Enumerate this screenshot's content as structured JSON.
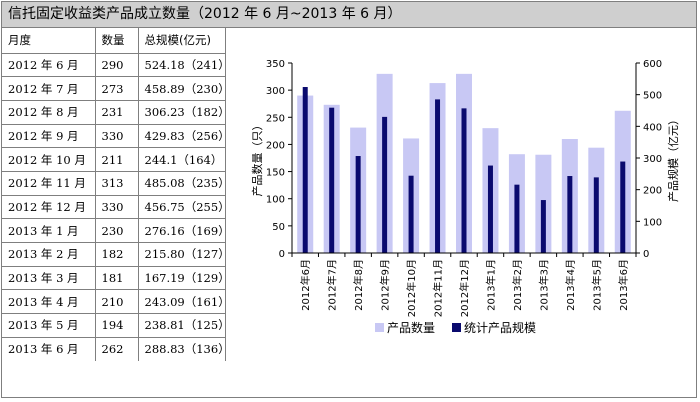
{
  "title": "信托固定收益类产品成立数量（2012 年 6 月~2013 年 6 月）",
  "table": {
    "headers": [
      "月度",
      "数量",
      "总规模(亿元)"
    ],
    "rows": [
      [
        "2012 年 6 月",
        "290",
        "524.18（241）"
      ],
      [
        "2012 年 7 月",
        "273",
        "458.89（230）"
      ],
      [
        "2012 年 8 月",
        "231",
        "306.23（182）"
      ],
      [
        "2012 年 9 月",
        "330",
        "429.83（256）"
      ],
      [
        "2012 年 10 月",
        "211",
        "244.1（164）"
      ],
      [
        "2012 年 11 月",
        "313",
        "485.08（235）"
      ],
      [
        "2012 年 12 月",
        "330",
        "456.75（255）"
      ],
      [
        "2013 年 1 月",
        "230",
        "276.16（169）"
      ],
      [
        "2013 年 2 月",
        "182",
        "215.80（127）"
      ],
      [
        "2013 年 3 月",
        "181",
        "167.19（129）"
      ],
      [
        "2013 年 4 月",
        "210",
        "243.09（161）"
      ],
      [
        "2013 年 5 月",
        "194",
        "238.81（125）"
      ],
      [
        "2013 年 6 月",
        "262",
        "288.83（136）"
      ]
    ]
  },
  "chart_data": {
    "type": "bar",
    "categories": [
      "2012年6月",
      "2012年7月",
      "2012年8月",
      "2012年9月",
      "2012年10月",
      "2012年11月",
      "2012年12月",
      "2013年1月",
      "2013年2月",
      "2013年3月",
      "2013年4月",
      "2013年5月",
      "2013年6月"
    ],
    "series": [
      {
        "name": "产品数量",
        "axis": "left",
        "color": "#c8c8f4",
        "values": [
          290,
          273,
          231,
          330,
          211,
          313,
          330,
          230,
          182,
          181,
          210,
          194,
          262
        ]
      },
      {
        "name": "统计产品规模",
        "axis": "right",
        "color": "#0a0a6e",
        "values": [
          524.18,
          458.89,
          306.23,
          429.83,
          244.1,
          485.08,
          456.75,
          276.16,
          215.8,
          167.19,
          243.09,
          238.81,
          288.83
        ]
      }
    ],
    "ylabel": "产品数量（只）",
    "y2label": "产品规模（亿元）",
    "ylim": [
      0,
      350
    ],
    "yticks": [
      0,
      50,
      100,
      150,
      200,
      250,
      300,
      350
    ],
    "y2lim": [
      0,
      600
    ],
    "y2ticks": [
      0,
      100,
      200,
      300,
      400,
      500,
      600
    ],
    "legend": "bottom",
    "grid": false
  }
}
